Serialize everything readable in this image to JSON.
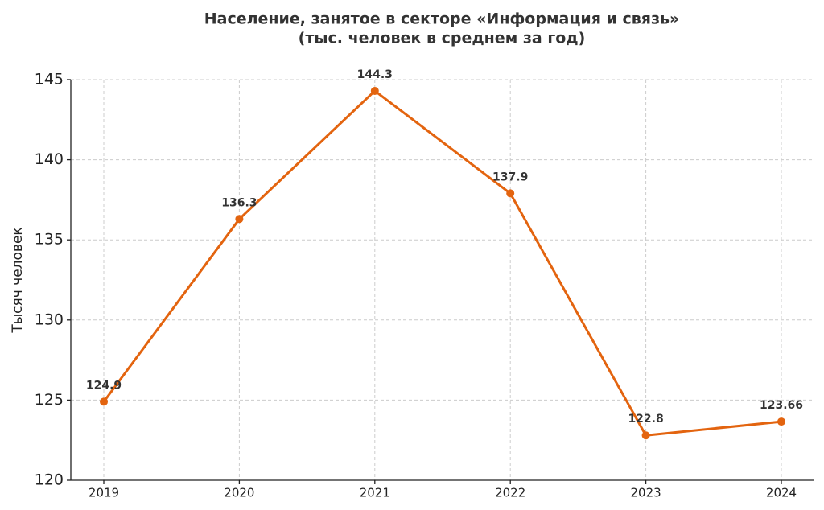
{
  "chart_data": {
    "type": "line",
    "title": "Население, занятое в секторе «Информация и связь»",
    "subtitle": "(тыс. человек в среднем за год)",
    "y_label": "Тысяч человек",
    "categories": [
      "2019",
      "2020",
      "2021",
      "2022",
      "2023",
      "2024"
    ],
    "series": [
      {
        "name": "Население",
        "color": "#e3640f",
        "values": [
          124.9,
          136.3,
          144.3,
          137.9,
          122.8,
          123.66
        ]
      }
    ],
    "ylim": [
      120,
      145
    ],
    "yticks": [
      120,
      125,
      130,
      135,
      140,
      145
    ],
    "grid": true
  }
}
